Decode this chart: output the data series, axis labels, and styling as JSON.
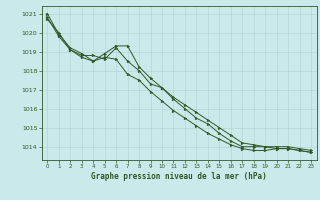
{
  "title": "Graphe pression niveau de la mer (hPa)",
  "bg_color": "#c8eaea",
  "grid_color": "#b0d8d8",
  "line_color": "#2d5a27",
  "xlim": [
    -0.5,
    23.5
  ],
  "ylim": [
    1013.3,
    1021.4
  ],
  "yticks": [
    1014,
    1015,
    1016,
    1017,
    1018,
    1019,
    1020,
    1021
  ],
  "xticks": [
    0,
    1,
    2,
    3,
    4,
    5,
    6,
    7,
    8,
    9,
    10,
    11,
    12,
    13,
    14,
    15,
    16,
    17,
    18,
    19,
    20,
    21,
    22,
    23
  ],
  "series1": [
    1020.7,
    1020.0,
    1019.1,
    1018.8,
    1018.8,
    1018.6,
    1019.2,
    1018.5,
    1018.0,
    1017.3,
    1017.1,
    1016.6,
    1016.2,
    1015.8,
    1015.4,
    1015.0,
    1014.6,
    1014.2,
    1014.1,
    1014.0,
    1014.0,
    1014.0,
    1013.9,
    1013.8
  ],
  "series2": [
    1021.0,
    1019.9,
    1019.2,
    1018.9,
    1018.5,
    1018.9,
    1019.3,
    1019.3,
    1018.2,
    1017.6,
    1017.1,
    1016.5,
    1016.0,
    1015.5,
    1015.2,
    1014.7,
    1014.3,
    1014.0,
    1014.0,
    1014.0,
    1013.9,
    1013.9,
    1013.8,
    1013.7
  ],
  "series3": [
    1020.8,
    1019.8,
    1019.1,
    1018.7,
    1018.5,
    1018.7,
    1018.6,
    1017.8,
    1017.5,
    1016.9,
    1016.4,
    1015.9,
    1015.5,
    1015.1,
    1014.7,
    1014.4,
    1014.1,
    1013.9,
    1013.8,
    1013.8,
    1013.9,
    1013.9,
    1013.8,
    1013.7
  ]
}
